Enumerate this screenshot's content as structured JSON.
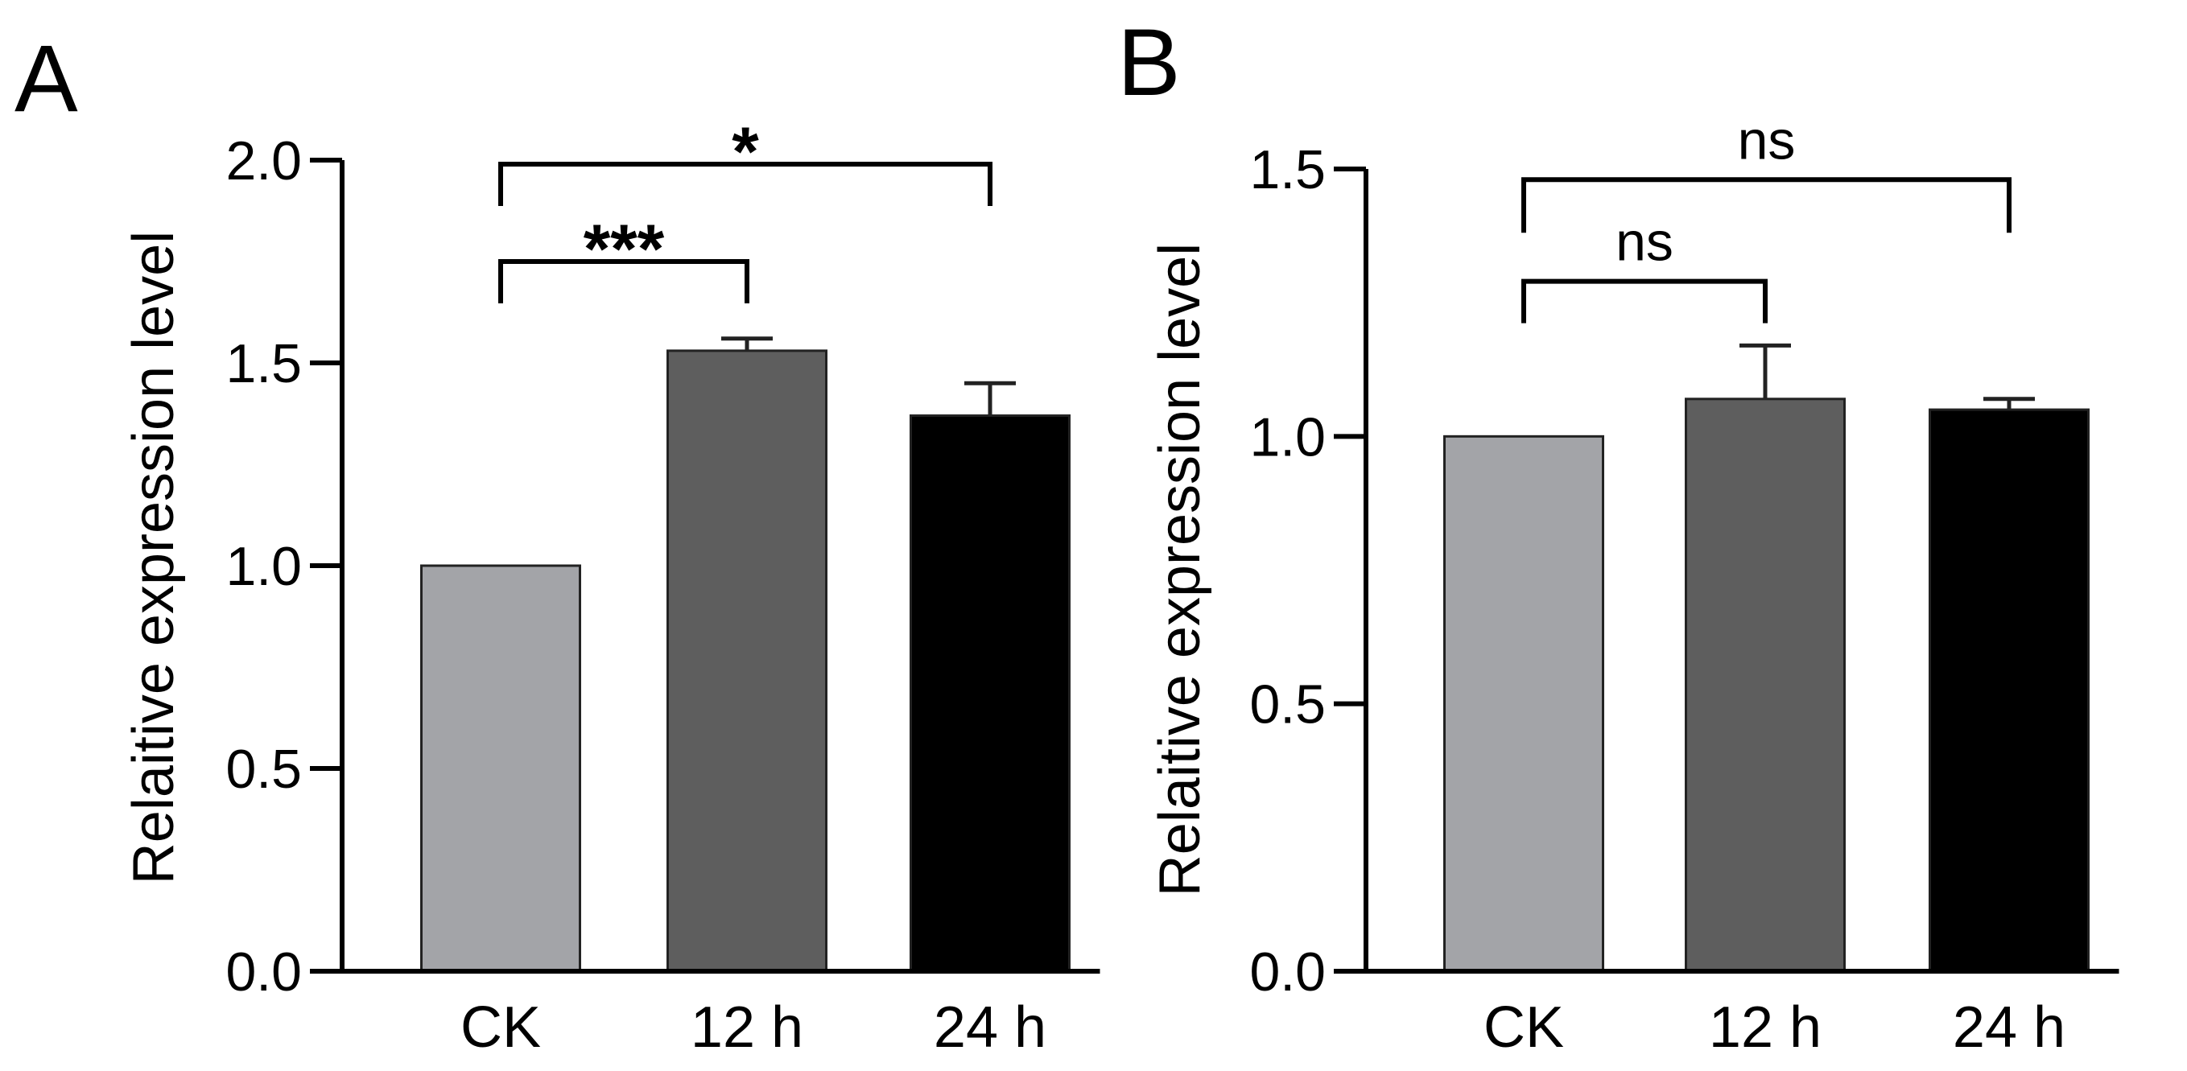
{
  "chart_data": [
    {
      "panel": "A",
      "type": "bar",
      "ylabel": "Relaitive  expression level",
      "xlabel": "",
      "ylim": [
        0,
        2.0
      ],
      "yticks": [
        "0.0",
        "0.5",
        "1.0",
        "1.5",
        "2.0"
      ],
      "categories": [
        "CK",
        "12 h",
        "24 h"
      ],
      "values": [
        1.0,
        1.53,
        1.37
      ],
      "errors": [
        0.0,
        0.03,
        0.08
      ],
      "bar_colors": [
        "#a3a4a8",
        "#5e5e5e",
        "#000000"
      ],
      "significance": [
        {
          "from": 0,
          "to": 1,
          "label": "***",
          "y": 1.75
        },
        {
          "from": 0,
          "to": 2,
          "label": "*",
          "y": 1.99
        }
      ]
    },
    {
      "panel": "B",
      "type": "bar",
      "ylabel": "Relaitive  expression level",
      "xlabel": "",
      "ylim": [
        0,
        1.5
      ],
      "yticks": [
        "0.0",
        "0.5",
        "1.0",
        "1.5"
      ],
      "categories": [
        "CK",
        "12 h",
        "24 h"
      ],
      "values": [
        1.0,
        1.07,
        1.05
      ],
      "errors": [
        0.0,
        0.1,
        0.02
      ],
      "bar_colors": [
        "#a3a4a8",
        "#5e5e5e",
        "#000000"
      ],
      "significance": [
        {
          "from": 0,
          "to": 1,
          "label": "ns",
          "y": 1.29
        },
        {
          "from": 0,
          "to": 2,
          "label": "ns",
          "y": 1.48
        }
      ]
    }
  ]
}
